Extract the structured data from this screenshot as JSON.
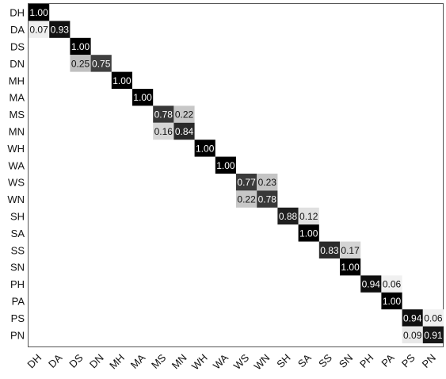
{
  "chart_data": {
    "type": "heatmap",
    "title": "",
    "xlabel": "",
    "ylabel": "",
    "row_labels": [
      "DH",
      "DA",
      "DS",
      "DN",
      "MH",
      "MA",
      "MS",
      "MN",
      "WH",
      "WA",
      "WS",
      "WN",
      "SH",
      "SA",
      "SS",
      "SN",
      "PH",
      "PA",
      "PS",
      "PN"
    ],
    "col_labels": [
      "DH",
      "DA",
      "DS",
      "DN",
      "MH",
      "MA",
      "MS",
      "MN",
      "WH",
      "WA",
      "WS",
      "WN",
      "SH",
      "SA",
      "SS",
      "SN",
      "PH",
      "PA",
      "PS",
      "PN"
    ],
    "value_range": [
      0,
      1
    ],
    "colors": {
      "high": "#000000",
      "low": "#ffffff",
      "text_dark": "#ffffff",
      "text_light": "#111111"
    },
    "cells": [
      {
        "row": 0,
        "col": 0,
        "value": 1.0,
        "label": "1.00"
      },
      {
        "row": 1,
        "col": 0,
        "value": 0.07,
        "label": "0.07"
      },
      {
        "row": 1,
        "col": 1,
        "value": 0.93,
        "label": "0.93"
      },
      {
        "row": 2,
        "col": 2,
        "value": 1.0,
        "label": "1.00"
      },
      {
        "row": 3,
        "col": 2,
        "value": 0.25,
        "label": "0.25"
      },
      {
        "row": 3,
        "col": 3,
        "value": 0.75,
        "label": "0.75"
      },
      {
        "row": 4,
        "col": 4,
        "value": 1.0,
        "label": "1.00"
      },
      {
        "row": 5,
        "col": 5,
        "value": 1.0,
        "label": "1.00"
      },
      {
        "row": 6,
        "col": 6,
        "value": 0.78,
        "label": "0.78"
      },
      {
        "row": 6,
        "col": 7,
        "value": 0.22,
        "label": "0.22"
      },
      {
        "row": 7,
        "col": 6,
        "value": 0.16,
        "label": "0.16"
      },
      {
        "row": 7,
        "col": 7,
        "value": 0.84,
        "label": "0.84"
      },
      {
        "row": 8,
        "col": 8,
        "value": 1.0,
        "label": "1.00"
      },
      {
        "row": 9,
        "col": 9,
        "value": 1.0,
        "label": "1.00"
      },
      {
        "row": 10,
        "col": 10,
        "value": 0.77,
        "label": "0.77"
      },
      {
        "row": 10,
        "col": 11,
        "value": 0.23,
        "label": "0.23"
      },
      {
        "row": 11,
        "col": 10,
        "value": 0.22,
        "label": "0.22"
      },
      {
        "row": 11,
        "col": 11,
        "value": 0.78,
        "label": "0.78"
      },
      {
        "row": 12,
        "col": 12,
        "value": 0.88,
        "label": "0.88"
      },
      {
        "row": 12,
        "col": 13,
        "value": 0.12,
        "label": "0.12"
      },
      {
        "row": 13,
        "col": 13,
        "value": 1.0,
        "label": "1.00"
      },
      {
        "row": 14,
        "col": 14,
        "value": 0.83,
        "label": "0.83"
      },
      {
        "row": 14,
        "col": 15,
        "value": 0.17,
        "label": "0.17"
      },
      {
        "row": 15,
        "col": 15,
        "value": 1.0,
        "label": "1.00"
      },
      {
        "row": 16,
        "col": 16,
        "value": 0.94,
        "label": "0.94"
      },
      {
        "row": 16,
        "col": 17,
        "value": 0.06,
        "label": "0.06"
      },
      {
        "row": 17,
        "col": 17,
        "value": 1.0,
        "label": "1.00"
      },
      {
        "row": 18,
        "col": 18,
        "value": 0.94,
        "label": "0.94"
      },
      {
        "row": 18,
        "col": 19,
        "value": 0.06,
        "label": "0.06"
      },
      {
        "row": 19,
        "col": 18,
        "value": 0.09,
        "label": "0.09"
      },
      {
        "row": 19,
        "col": 19,
        "value": 0.91,
        "label": "0.91"
      }
    ]
  }
}
